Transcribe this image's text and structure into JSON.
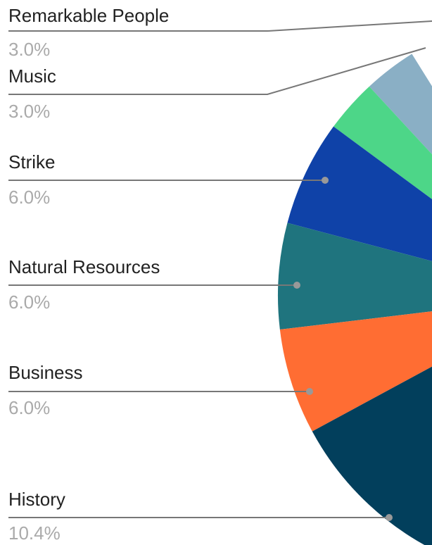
{
  "chart_data": {
    "type": "pie",
    "categories": [
      "Remarkable People",
      "Music",
      "Strike",
      "Natural Resources",
      "Business",
      "History"
    ],
    "values": [
      3,
      3,
      6,
      6,
      6,
      10.4
    ],
    "value_labels": [
      "3.0%",
      "3.0%",
      "6.0%",
      "6.0%",
      "6.0%",
      "10.4%"
    ],
    "colors": [
      "#8aafc5",
      "#4dd688",
      "#0f42a8",
      "#1f747e",
      "#ff6d33",
      "#023f5c"
    ]
  }
}
